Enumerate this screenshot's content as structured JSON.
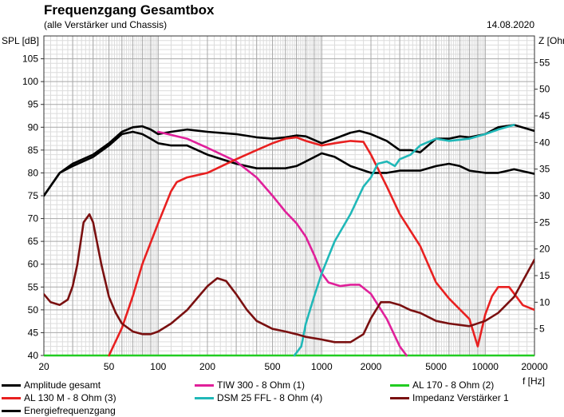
{
  "header": {
    "title": "Frequenzgang Gesamtbox",
    "subtitle": "(alle Verstärker und Chassis)",
    "date": "14.08.2020"
  },
  "chart_data": {
    "type": "line",
    "x_scale": "log",
    "xlim": [
      20,
      20000
    ],
    "ylim": [
      40,
      110
    ],
    "y2lim": [
      0,
      60
    ],
    "ylabel": "SPL [dB]",
    "y2label": "Z [Ohm]",
    "xlabel": "f [Hz]",
    "grid": true,
    "legend_position": "bottom",
    "x_ticks": [
      20,
      50,
      100,
      200,
      500,
      1000,
      2000,
      5000,
      10000,
      20000
    ],
    "x_tick_labels": [
      "20",
      "50",
      "100",
      "200",
      "500",
      "1000",
      "2000",
      "5000",
      "10000",
      "20000"
    ],
    "y_ticks": [
      40,
      45,
      50,
      55,
      60,
      65,
      70,
      75,
      80,
      85,
      90,
      95,
      100,
      105
    ],
    "y_tick_labels": [
      "40",
      "45",
      "50",
      "55",
      "60",
      "65",
      "70",
      "75",
      "80",
      "85",
      "90",
      "95",
      "100",
      "105"
    ],
    "y2_ticks": [
      5,
      10,
      15,
      20,
      25,
      30,
      35,
      40,
      45,
      50,
      55
    ],
    "y2_tick_labels": [
      "5",
      "10",
      "15",
      "20",
      "25",
      "30",
      "35",
      "40",
      "45",
      "50",
      "55"
    ],
    "series": [
      {
        "name": "Amplitude gesamt",
        "color": "#000000",
        "axis": "left",
        "x": [
          20,
          25,
          30,
          40,
          50,
          60,
          70,
          80,
          90,
          100,
          120,
          150,
          200,
          300,
          400,
          500,
          600,
          700,
          800,
          1000,
          1200,
          1500,
          1700,
          2000,
          2500,
          3000,
          3500,
          4000,
          5000,
          6000,
          7000,
          8000,
          10000,
          12000,
          15000,
          20000
        ],
        "y": [
          75,
          80,
          82,
          84,
          86.5,
          89,
          90,
          90.2,
          89.5,
          88.5,
          89,
          89.5,
          89,
          88.5,
          87.8,
          87.5,
          87.8,
          88.2,
          88,
          86.5,
          87.5,
          88.8,
          89.2,
          88.5,
          87,
          85,
          85,
          84.5,
          87.5,
          87.5,
          88,
          87.8,
          88.5,
          90,
          90.5,
          89.2
        ]
      },
      {
        "name": "TIW 300 - 8 Ohm (1)",
        "color": "#e0209a",
        "axis": "left",
        "x": [
          100,
          150,
          200,
          300,
          400,
          500,
          600,
          700,
          800,
          900,
          1000,
          1100,
          1300,
          1500,
          1700,
          2000,
          2500,
          3000,
          3300
        ],
        "y": [
          89,
          87.5,
          85.5,
          82.5,
          79,
          75,
          71.5,
          69,
          66,
          62,
          58,
          56,
          55.2,
          55.5,
          55.5,
          53.5,
          48,
          42,
          40
        ]
      },
      {
        "name": "AL 170 - 8 Ohm (2)",
        "color": "#22cc22",
        "axis": "left",
        "x": [
          20,
          20000
        ],
        "y": [
          40,
          40
        ]
      },
      {
        "name": "AL 130 M - 8 Ohm (3)",
        "color": "#e82020",
        "axis": "left",
        "x": [
          50,
          60,
          70,
          80,
          100,
          120,
          130,
          150,
          200,
          300,
          400,
          500,
          600,
          700,
          800,
          1000,
          1200,
          1500,
          1800,
          2000,
          2500,
          3000,
          4000,
          5000,
          6000,
          8000,
          9000,
          10000,
          11000,
          12000,
          14000,
          17000,
          20000
        ],
        "y": [
          40,
          46,
          53,
          60,
          69,
          76,
          78,
          79,
          80,
          83,
          85,
          86.5,
          87.5,
          87.8,
          87,
          86,
          86.5,
          87,
          86.8,
          84,
          77,
          71,
          64,
          56,
          52.5,
          48,
          42,
          49,
          53,
          55,
          55,
          51,
          50
        ]
      },
      {
        "name": "DSM 25 FFL - 8 Ohm (4)",
        "color": "#20b8b8",
        "axis": "left",
        "x": [
          680,
          750,
          800,
          900,
          1000,
          1200,
          1500,
          1800,
          2000,
          2200,
          2500,
          2800,
          3000,
          3500,
          4000,
          5000,
          6000,
          8000,
          10000,
          12000,
          15000
        ],
        "y": [
          40,
          42,
          47,
          53,
          58,
          65,
          71,
          77,
          79,
          82,
          82.5,
          81.5,
          83,
          84,
          86,
          87.5,
          87,
          87.5,
          88.5,
          89.5,
          90.5
        ]
      },
      {
        "name": "Impedanz Verstärker 1",
        "color": "#7a1010",
        "axis": "right",
        "x": [
          20,
          22,
          25,
          28,
          30,
          32,
          35,
          38,
          40,
          45,
          50,
          55,
          60,
          70,
          80,
          90,
          100,
          120,
          150,
          200,
          230,
          260,
          300,
          350,
          400,
          500,
          600,
          700,
          800,
          1000,
          1200,
          1500,
          1800,
          2000,
          2300,
          2600,
          3000,
          3500,
          4000,
          5000,
          6000,
          8000,
          10000,
          12000,
          15000,
          20000
        ],
        "y": [
          11.5,
          10,
          9.5,
          10.5,
          13,
          17,
          25,
          26.5,
          25,
          17,
          11,
          8,
          6,
          4.5,
          4,
          4,
          4.5,
          6,
          8.5,
          13,
          14.5,
          14,
          11.5,
          8.5,
          6.5,
          5,
          4.5,
          4,
          3.5,
          3,
          2.5,
          2.5,
          4,
          7,
          10,
          10,
          9.5,
          8.5,
          8,
          6.5,
          6,
          5.5,
          6.5,
          8,
          11,
          18
        ]
      },
      {
        "name": "Energiefrequenzgang",
        "color": "#000000",
        "axis": "left",
        "x": [
          20,
          25,
          30,
          40,
          50,
          60,
          70,
          80,
          90,
          100,
          120,
          150,
          200,
          300,
          400,
          500,
          600,
          700,
          800,
          1000,
          1200,
          1500,
          2000,
          2500,
          3000,
          4000,
          5000,
          6000,
          7000,
          8000,
          10000,
          12000,
          15000,
          20000
        ],
        "y": [
          75,
          80,
          81.5,
          83.5,
          86,
          88.5,
          89,
          88.5,
          87.5,
          86.5,
          86,
          86,
          84,
          82,
          81,
          81,
          81,
          81.5,
          82.5,
          84.3,
          83.5,
          81.5,
          80,
          80,
          80.5,
          80.5,
          81.5,
          82,
          81.5,
          80.5,
          80,
          80,
          80.8,
          79.8
        ]
      }
    ]
  }
}
